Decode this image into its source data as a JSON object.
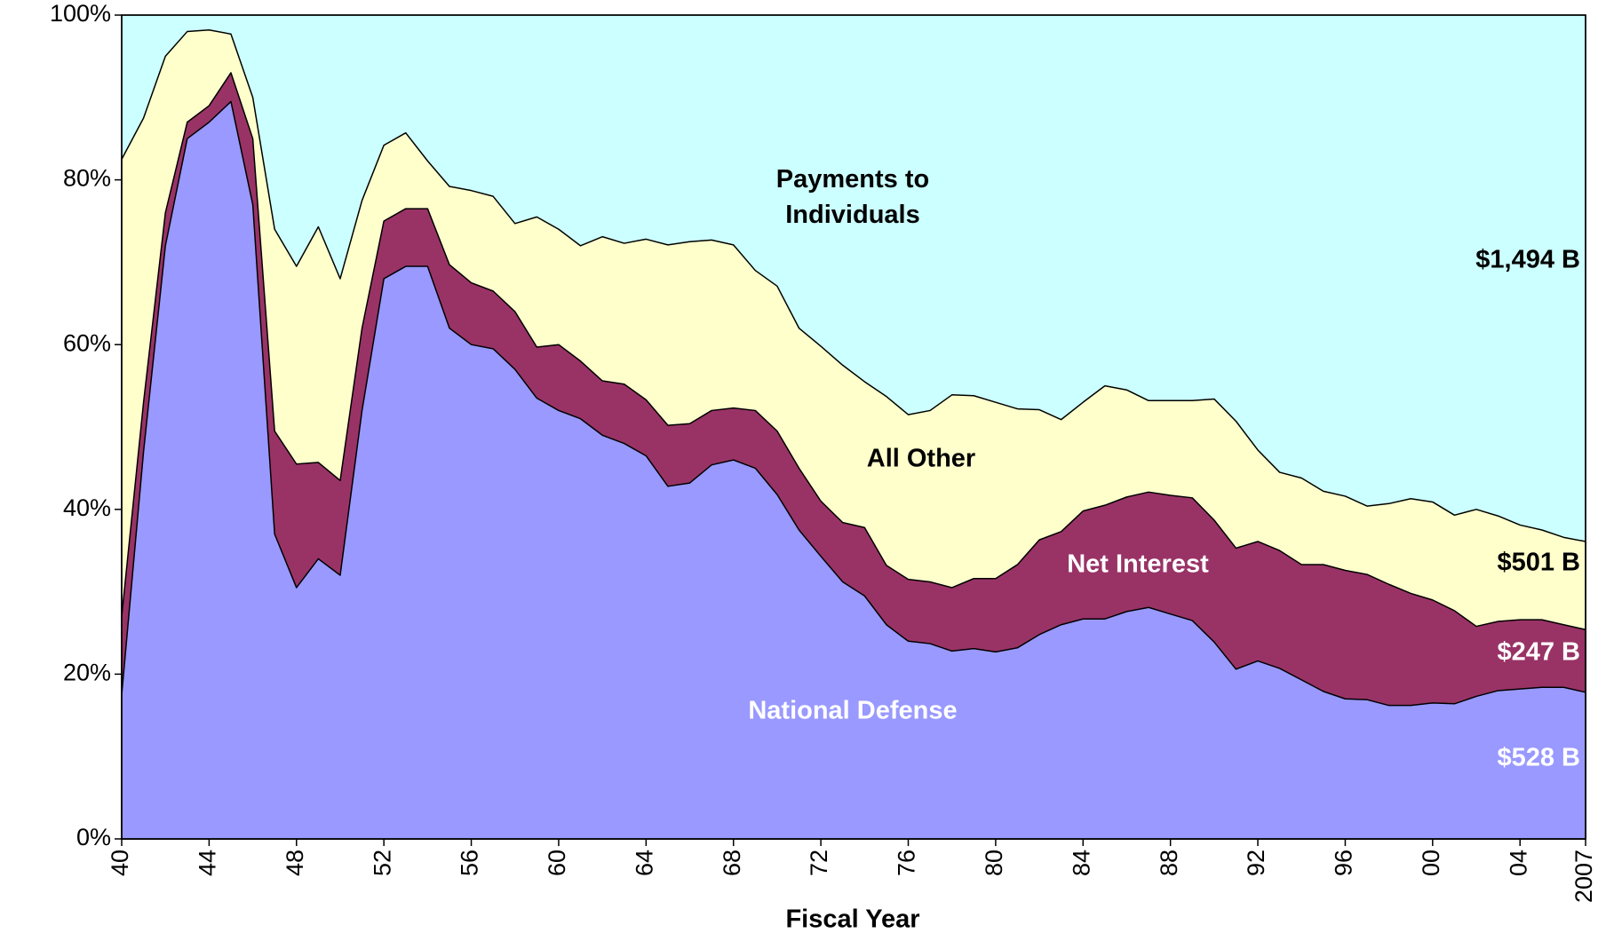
{
  "chart_data": {
    "type": "stacked_area",
    "xlabel": "Fiscal Year",
    "x": [
      1940,
      1941,
      1942,
      1943,
      1944,
      1945,
      1946,
      1947,
      1948,
      1949,
      1950,
      1951,
      1952,
      1953,
      1954,
      1955,
      1956,
      1957,
      1958,
      1959,
      1960,
      1961,
      1962,
      1963,
      1964,
      1965,
      1966,
      1967,
      1968,
      1969,
      1970,
      1971,
      1972,
      1973,
      1974,
      1975,
      1976,
      1977,
      1978,
      1979,
      1980,
      1981,
      1982,
      1983,
      1984,
      1985,
      1986,
      1987,
      1988,
      1989,
      1990,
      1991,
      1992,
      1993,
      1994,
      1995,
      1996,
      1997,
      1998,
      1999,
      2000,
      2001,
      2002,
      2003,
      2004,
      2005,
      2006,
      2007
    ],
    "xlim": [
      1940,
      2007
    ],
    "xticks": [
      {
        "value": 1940,
        "label": "40"
      },
      {
        "value": 1944,
        "label": "44"
      },
      {
        "value": 1948,
        "label": "48"
      },
      {
        "value": 1952,
        "label": "52"
      },
      {
        "value": 1956,
        "label": "56"
      },
      {
        "value": 1960,
        "label": "60"
      },
      {
        "value": 1964,
        "label": "64"
      },
      {
        "value": 1968,
        "label": "68"
      },
      {
        "value": 1972,
        "label": "72"
      },
      {
        "value": 1976,
        "label": "76"
      },
      {
        "value": 1980,
        "label": "80"
      },
      {
        "value": 1984,
        "label": "84"
      },
      {
        "value": 1988,
        "label": "88"
      },
      {
        "value": 1992,
        "label": "92"
      },
      {
        "value": 1996,
        "label": "96"
      },
      {
        "value": 2000,
        "label": "00"
      },
      {
        "value": 2004,
        "label": "04"
      },
      {
        "value": 2007,
        "label": "2007"
      }
    ],
    "ylim": [
      0,
      100
    ],
    "yticks": [
      {
        "value": 0,
        "label": "0%"
      },
      {
        "value": 20,
        "label": "20%"
      },
      {
        "value": 40,
        "label": "40%"
      },
      {
        "value": 60,
        "label": "60%"
      },
      {
        "value": 80,
        "label": "80%"
      },
      {
        "value": 100,
        "label": "100%"
      }
    ],
    "grid": false,
    "series": [
      {
        "name": "National Defense",
        "color": "#9999ff",
        "end_label": "$528 B",
        "values": [
          17.5,
          47,
          72,
          85,
          87,
          89.5,
          77,
          37,
          30.5,
          34,
          32,
          52,
          68,
          69.5,
          69.5,
          62,
          60,
          59.5,
          57,
          53.5,
          52,
          51,
          49,
          48,
          46.5,
          42.8,
          43.2,
          45.4,
          46,
          45,
          41.8,
          37.5,
          34.3,
          31.2,
          29.5,
          26,
          24,
          23.7,
          22.8,
          23.1,
          22.7,
          23.2,
          24.8,
          26,
          26.7,
          26.7,
          27.6,
          28.1,
          27.3,
          26.5,
          23.9,
          20.6,
          21.6,
          20.7,
          19.3,
          17.9,
          17,
          16.9,
          16.2,
          16.2,
          16.5,
          16.4,
          17.3,
          18,
          18.2,
          18.4,
          18.4,
          17.8
        ]
      },
      {
        "name": "Net Interest",
        "color": "#993366",
        "end_label": "$247 B",
        "values": [
          9.5,
          6,
          4,
          2,
          2,
          3.5,
          8,
          12.5,
          15,
          11.7,
          11.5,
          10,
          7,
          7,
          7,
          7.7,
          7.5,
          7,
          7,
          6.2,
          8,
          7,
          6.6,
          7.2,
          6.8,
          7.4,
          7.2,
          6.6,
          6.3,
          7,
          7.7,
          7.5,
          6.7,
          7.2,
          8.3,
          7.2,
          7.5,
          7.5,
          7.7,
          8.5,
          8.9,
          10.1,
          11.5,
          11.3,
          13.1,
          13.8,
          13.9,
          14,
          14.4,
          14.9,
          14.8,
          14.7,
          14.5,
          14.3,
          14,
          15.4,
          15.6,
          15.2,
          14.7,
          13.6,
          12.5,
          11.3,
          8.5,
          8.4,
          8.4,
          8.2,
          7.6,
          7.6
        ]
      },
      {
        "name": "All Other",
        "color": "#ffffcc",
        "end_label": "$501 B",
        "values": [
          55.5,
          34.5,
          19,
          11,
          9.2,
          4.7,
          5,
          24.5,
          24,
          28.6,
          24.5,
          15.5,
          9.2,
          9.2,
          5.8,
          9.5,
          11.2,
          11.5,
          10.7,
          15.8,
          14,
          14,
          17.5,
          17.1,
          19.5,
          21.9,
          22.1,
          20.7,
          19.8,
          17,
          17.6,
          17,
          18.8,
          19.1,
          17.7,
          20.5,
          20,
          20.8,
          23.4,
          22.2,
          21.4,
          18.9,
          15.8,
          13.6,
          13.2,
          14.5,
          13,
          11.1,
          11.5,
          11.8,
          14.7,
          15.4,
          11.1,
          9.5,
          10.5,
          8.9,
          9,
          8.3,
          9.8,
          11.5,
          11.9,
          11.6,
          14.2,
          12.8,
          11.5,
          10.9,
          10.6,
          10.7
        ]
      },
      {
        "name": "Payments to Individuals",
        "color": "#ccffff",
        "end_label": "$1,494 B",
        "values": [
          17.5,
          12.5,
          5,
          2,
          1.8,
          2.3,
          10,
          26,
          30.5,
          25.7,
          32,
          22.5,
          15.8,
          14.3,
          17.7,
          20.8,
          21.3,
          22,
          25.3,
          24.5,
          26,
          28,
          26.9,
          27.7,
          27.2,
          27.9,
          27.5,
          27.3,
          27.9,
          31,
          32.9,
          38,
          40.2,
          42.5,
          44.5,
          46.3,
          48.5,
          48,
          46.1,
          46.2,
          47,
          47.8,
          47.9,
          49.1,
          47,
          45,
          45.5,
          46.8,
          46.8,
          46.8,
          46.6,
          49.3,
          52.8,
          55.5,
          56.2,
          57.8,
          58.4,
          59.6,
          59.3,
          58.7,
          59.1,
          60.7,
          60,
          60.8,
          61.9,
          62.5,
          63.4,
          63.9
        ]
      }
    ]
  }
}
